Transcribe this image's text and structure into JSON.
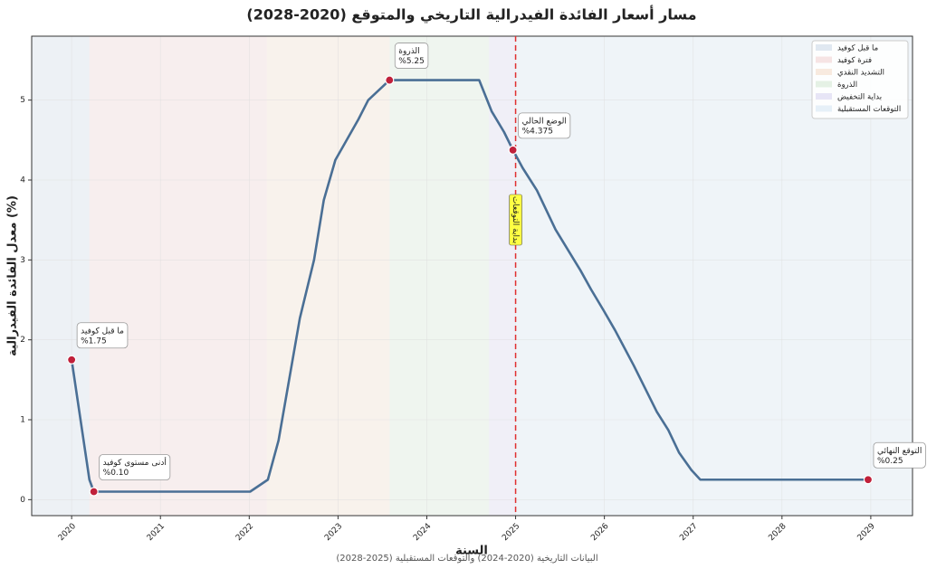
{
  "chart_data": {
    "type": "line",
    "title": "مسار أسعار الفائدة الفيدرالية التاريخي والمتوقع (2020-2028)",
    "subtitle": "البيانات التاريخية (2020-2024) والتوقعات المستقبلية (2025-2028)",
    "x_label": "السنة",
    "y_label": "معدل الفائدة الفيدرالية (%)",
    "color": "#4a6f95",
    "x": [
      2020.0,
      2020.2,
      2020.25,
      2022.01,
      2022.21,
      2022.33,
      2022.57,
      2022.73,
      2022.84,
      2022.97,
      2023.23,
      2023.34,
      2023.58,
      2024.59,
      2024.73,
      2024.87,
      2024.97,
      2025.08,
      2025.24,
      2025.45,
      2025.73,
      2025.85,
      2025.99,
      2026.12,
      2026.33,
      2026.46,
      2026.59,
      2026.72,
      2026.84,
      2026.98,
      2027.08,
      2028.97
    ],
    "values": [
      1.75,
      0.25,
      0.1,
      0.1,
      0.25,
      0.74,
      2.27,
      3.0,
      3.75,
      4.25,
      4.76,
      5.0,
      5.25,
      5.25,
      4.86,
      4.6,
      4.375,
      4.15,
      3.87,
      3.38,
      2.87,
      2.63,
      2.37,
      2.12,
      1.68,
      1.39,
      1.1,
      0.87,
      0.59,
      0.37,
      0.25,
      0.25
    ],
    "xlim": [
      2019.55,
      2029.47
    ],
    "ylim": [
      -0.2,
      5.8
    ],
    "xticks": [
      2020,
      2021,
      2022,
      2023,
      2024,
      2025,
      2026,
      2027,
      2028,
      2029
    ],
    "yticks": [
      0,
      1,
      2,
      3,
      4,
      5
    ],
    "grid": true,
    "legend_position": "upper-right",
    "regions": [
      {
        "name": "ما قبل كوفيد",
        "color": "#dde6f0",
        "start": 2019.55,
        "end": 2020.2
      },
      {
        "name": "فترة كوفيد",
        "color": "#f5e1e1",
        "start": 2020.2,
        "end": 2022.2
      },
      {
        "name": "التشديد النقدي",
        "color": "#f7e8dc",
        "start": 2022.2,
        "end": 2023.58
      },
      {
        "name": "الذروة",
        "color": "#e2f0e2",
        "start": 2023.58,
        "end": 2024.7
      },
      {
        "name": "بداية التخفيض",
        "color": "#e4e2f5",
        "start": 2024.7,
        "end": 2025.0
      },
      {
        "name": "التوقعات المستقبلية",
        "color": "#e3eef7",
        "start": 2025.0,
        "end": 2029.47
      }
    ],
    "vline": {
      "x": 2025.0,
      "label": "بداية التوقعات",
      "color": "#e03030"
    },
    "annotations": [
      {
        "label": "ما قبل كوفيد",
        "value_label": "%1.75",
        "x": 2020.0,
        "y": 1.75
      },
      {
        "label": "أدنى مستوى كوفيد",
        "value_label": "%0.10",
        "x": 2020.25,
        "y": 0.1
      },
      {
        "label": "الذروة",
        "value_label": "%5.25",
        "x": 2023.58,
        "y": 5.25
      },
      {
        "label": "الوضع الحالي",
        "value_label": "%4.375",
        "x": 2024.97,
        "y": 4.375
      },
      {
        "label": "التوقع النهائي",
        "value_label": "%0.25",
        "x": 2028.97,
        "y": 0.25
      }
    ],
    "marker_color": "#c0203a"
  }
}
